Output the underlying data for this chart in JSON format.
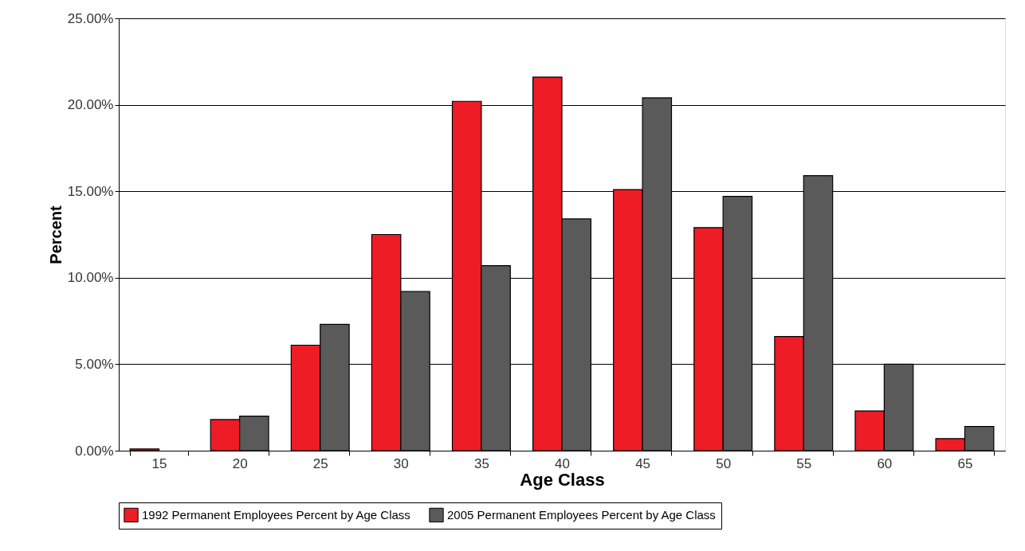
{
  "chart_data": {
    "type": "bar",
    "xlabel": "Age Class",
    "ylabel": "Percent",
    "categories": [
      "15",
      "20",
      "25",
      "30",
      "35",
      "40",
      "45",
      "50",
      "55",
      "60",
      "65"
    ],
    "series": [
      {
        "name": "1992 Permanent Employees Percent by Age Class",
        "color": "#ee1c25",
        "values": [
          0.1,
          1.8,
          6.1,
          12.5,
          20.2,
          21.6,
          15.1,
          12.9,
          6.6,
          2.3,
          0.7
        ]
      },
      {
        "name": "2005 Permanent Employees Percent by Age Class",
        "color": "#5a5a5a",
        "values": [
          null,
          2.0,
          7.3,
          9.2,
          10.7,
          13.4,
          20.4,
          14.7,
          15.9,
          5.0,
          1.4
        ]
      }
    ],
    "ylim": [
      0,
      25
    ],
    "yticks": [
      {
        "value": 0,
        "label": "0.00%"
      },
      {
        "value": 5,
        "label": "5.00%"
      },
      {
        "value": 10,
        "label": "10.00%"
      },
      {
        "value": 15,
        "label": "15.00%"
      },
      {
        "value": 20,
        "label": "20.00%"
      },
      {
        "value": 25,
        "label": "25.00%"
      }
    ],
    "grid": "y",
    "legend": "bottom"
  }
}
